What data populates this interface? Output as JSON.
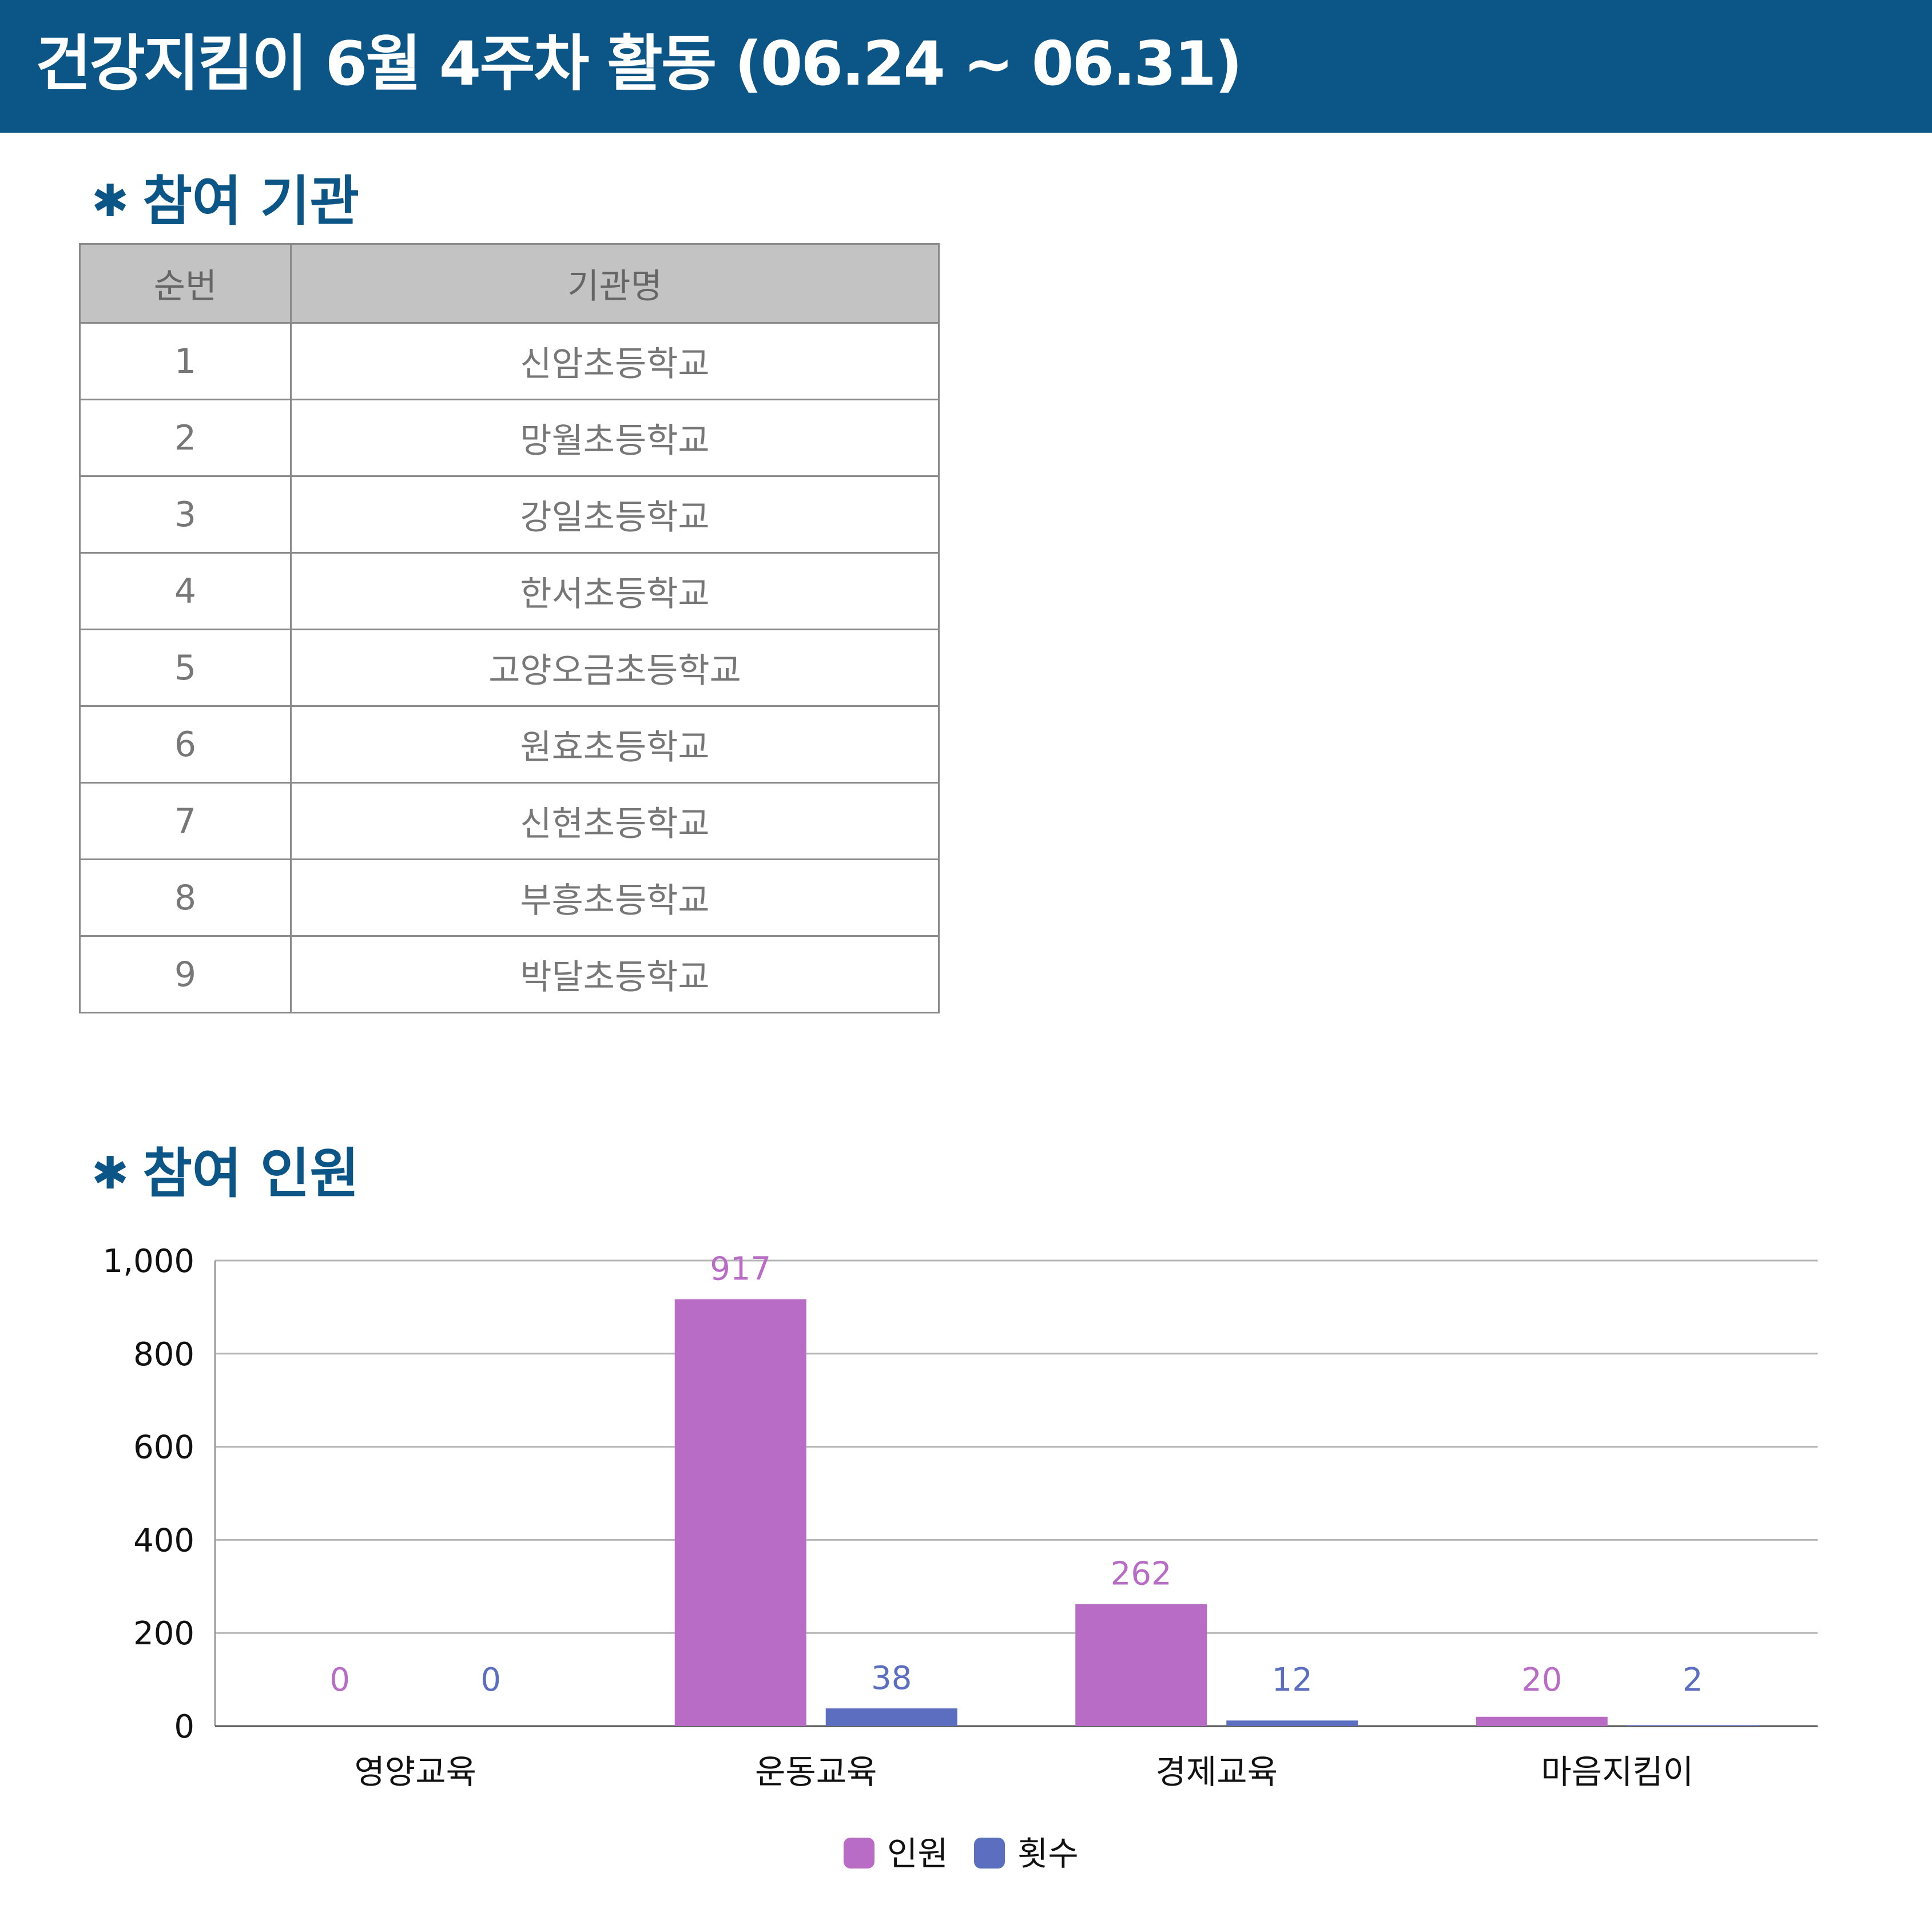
{
  "header": {
    "title": "건강지킴이 6월 4주차 활동 (06.24 ~ 06.31)"
  },
  "sections": {
    "orgs_title": "참여 기관",
    "people_title": "참여 인원",
    "bullet": "✱"
  },
  "table": {
    "headers": [
      "순번",
      "기관명"
    ],
    "rows": [
      [
        "1",
        "신암초등학교"
      ],
      [
        "2",
        "망월초등학교"
      ],
      [
        "3",
        "강일초등학교"
      ],
      [
        "4",
        "한서초등학교"
      ],
      [
        "5",
        "고양오금초등학교"
      ],
      [
        "6",
        "원효초등학교"
      ],
      [
        "7",
        "신현초등학교"
      ],
      [
        "8",
        "부흥초등학교"
      ],
      [
        "9",
        "박달초등학교"
      ]
    ]
  },
  "colors": {
    "header_bg": "#0c5587",
    "series_people": "#b96cc5",
    "series_count": "#5b6ec0"
  },
  "chart_data": {
    "type": "bar",
    "title": "",
    "xlabel": "",
    "ylabel": "",
    "categories": [
      "영양교육",
      "운동교육",
      "경제교육",
      "마음지킴이"
    ],
    "series": [
      {
        "name": "인원",
        "values": [
          0,
          917,
          262,
          20
        ]
      },
      {
        "name": "횟수",
        "values": [
          0,
          38,
          12,
          2
        ]
      }
    ],
    "ylim": [
      0,
      1000
    ],
    "yticks": [
      0,
      200,
      400,
      600,
      800,
      1000
    ],
    "ytick_labels": [
      "0",
      "200",
      "400",
      "600",
      "800",
      "1,000"
    ],
    "grid": true,
    "legend_position": "bottom",
    "data_labels": true
  }
}
